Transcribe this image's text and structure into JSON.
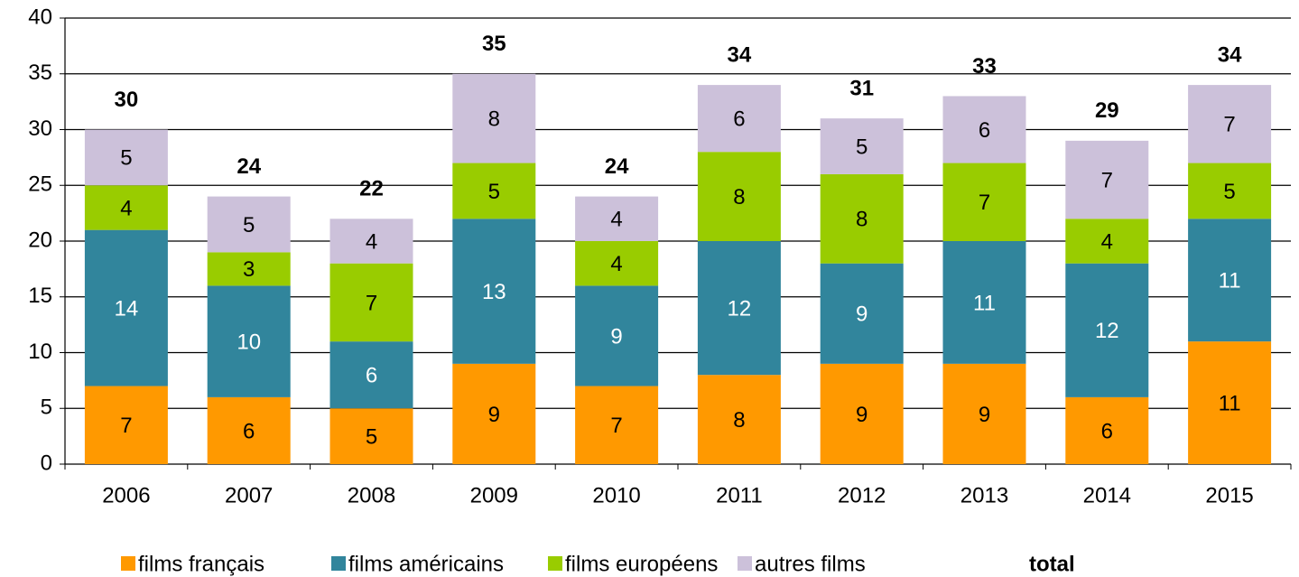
{
  "chart_data": {
    "type": "stacked_bar",
    "categories": [
      "2006",
      "2007",
      "2008",
      "2009",
      "2010",
      "2011",
      "2012",
      "2013",
      "2014",
      "2015"
    ],
    "series": [
      {
        "name": "films français",
        "color": "#ff9900",
        "label_color": "#000000",
        "values": [
          7,
          6,
          5,
          9,
          7,
          8,
          9,
          9,
          6,
          11
        ]
      },
      {
        "name": "films américains",
        "color": "#31859c",
        "label_color": "#ffffff",
        "values": [
          14,
          10,
          6,
          13,
          9,
          12,
          9,
          11,
          12,
          11
        ]
      },
      {
        "name": "films européens",
        "color": "#99cc00",
        "label_color": "#000000",
        "values": [
          4,
          3,
          7,
          5,
          4,
          8,
          8,
          7,
          4,
          5
        ]
      },
      {
        "name": "autres films",
        "color": "#ccc1da",
        "label_color": "#000000",
        "values": [
          5,
          5,
          4,
          8,
          4,
          6,
          5,
          6,
          7,
          7
        ]
      }
    ],
    "totals": {
      "name": "total",
      "values": [
        30,
        24,
        22,
        35,
        24,
        34,
        31,
        33,
        29,
        34
      ]
    },
    "ylim": [
      0,
      40
    ],
    "yticks": [
      0,
      5,
      10,
      15,
      20,
      25,
      30,
      35,
      40
    ],
    "grid": true
  }
}
